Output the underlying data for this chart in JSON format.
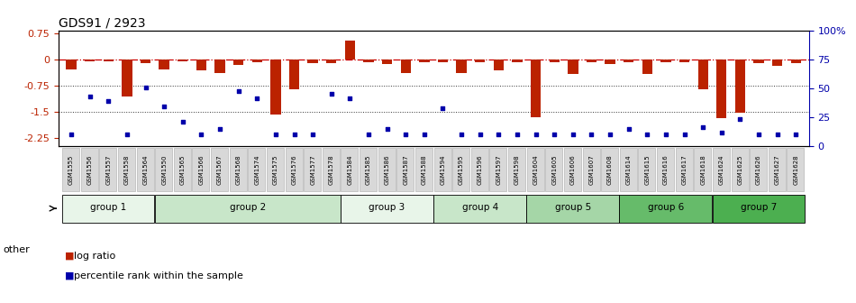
{
  "title": "GDS91 / 2923",
  "samples": [
    "GSM1555",
    "GSM1556",
    "GSM1557",
    "GSM1558",
    "GSM1564",
    "GSM1550",
    "GSM1565",
    "GSM1566",
    "GSM1567",
    "GSM1568",
    "GSM1574",
    "GSM1575",
    "GSM1576",
    "GSM1577",
    "GSM1578",
    "GSM1584",
    "GSM1585",
    "GSM1586",
    "GSM1587",
    "GSM1588",
    "GSM1594",
    "GSM1595",
    "GSM1596",
    "GSM1597",
    "GSM1598",
    "GSM1604",
    "GSM1605",
    "GSM1606",
    "GSM1607",
    "GSM1608",
    "GSM1614",
    "GSM1615",
    "GSM1616",
    "GSM1617",
    "GSM1618",
    "GSM1624",
    "GSM1625",
    "GSM1626",
    "GSM1627",
    "GSM1628"
  ],
  "log_ratio": [
    -0.28,
    -0.05,
    -0.05,
    -1.05,
    -0.1,
    -0.28,
    -0.05,
    -0.32,
    -0.38,
    -0.15,
    -0.08,
    -1.58,
    -0.85,
    -0.1,
    -0.1,
    0.55,
    -0.08,
    -0.12,
    -0.38,
    -0.08,
    -0.08,
    -0.38,
    -0.08,
    -0.32,
    -0.08,
    -1.65,
    -0.08,
    -0.42,
    -0.08,
    -0.12,
    -0.08,
    -0.42,
    -0.08,
    -0.08,
    -0.85,
    -1.68,
    -1.52,
    -0.1,
    -0.18,
    -0.1
  ],
  "percentile": [
    3,
    40,
    35,
    3,
    48,
    30,
    15,
    3,
    8,
    45,
    38,
    3,
    3,
    3,
    42,
    38,
    3,
    8,
    3,
    3,
    28,
    3,
    3,
    3,
    3,
    3,
    3,
    3,
    3,
    3,
    8,
    3,
    3,
    3,
    10,
    5,
    18,
    3,
    3,
    3
  ],
  "ylim_left": [
    -2.5,
    0.85
  ],
  "ylim_right": [
    0,
    100
  ],
  "yticks_left": [
    -2.25,
    -1.5,
    -0.75,
    0,
    0.75
  ],
  "ytick_labels_left": [
    "-2.25",
    "-1.5",
    "-0.75",
    "0",
    "0.75"
  ],
  "yticks_right": [
    0,
    25,
    50,
    75,
    100
  ],
  "ytick_labels_right": [
    "0",
    "25",
    "50",
    "75",
    "100%"
  ],
  "groups": [
    {
      "name": "group 1",
      "start": 0,
      "end": 5
    },
    {
      "name": "group 2",
      "start": 5,
      "end": 15
    },
    {
      "name": "group 3",
      "start": 15,
      "end": 20
    },
    {
      "name": "group 4",
      "start": 20,
      "end": 25
    },
    {
      "name": "group 5",
      "start": 25,
      "end": 30
    },
    {
      "name": "group 6",
      "start": 30,
      "end": 35
    },
    {
      "name": "group 7",
      "start": 35,
      "end": 40
    }
  ],
  "group_colors": [
    "#e8f5e9",
    "#c8e6c9",
    "#e8f5e9",
    "#c8e6c9",
    "#a5d6a7",
    "#66bb6a",
    "#4caf50"
  ],
  "bar_color": "#bb2200",
  "dot_color": "#0000aa",
  "legend_bar_label": "log ratio",
  "legend_dot_label": "percentile rank within the sample",
  "other_label": "other",
  "hline0_color": "#cc0000",
  "hline_ref_color": "#333333",
  "bg_color": "white",
  "xlabel_bg": "#d8d8d8",
  "xlabel_border": "#aaaaaa"
}
